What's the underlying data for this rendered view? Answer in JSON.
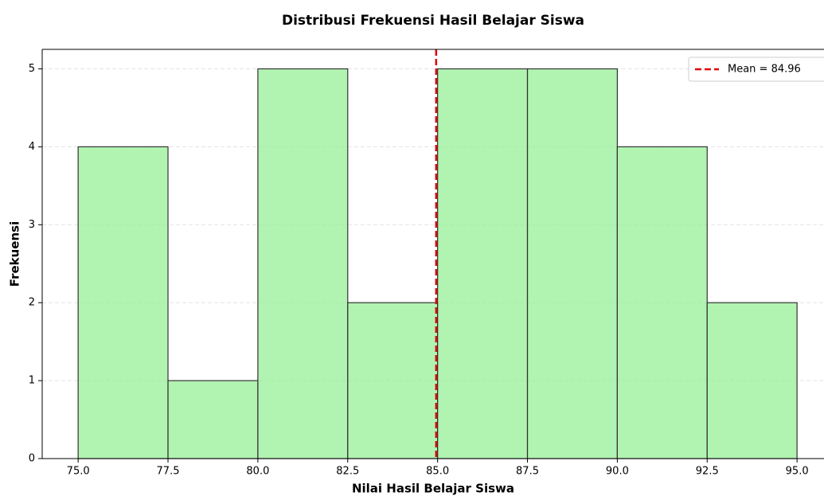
{
  "chart_data": {
    "type": "histogram",
    "title": "Distribusi Frekuensi Hasil Belajar Siswa",
    "x_label": "Nilai Hasil Belajar Siswa",
    "y_label": "Frekuensi",
    "bins": [
      75,
      77.5,
      80,
      82.5,
      85,
      87.5,
      90,
      92.5,
      95
    ],
    "values": [
      4,
      1,
      5,
      2,
      5,
      5,
      4,
      2
    ],
    "color": "#90ee90",
    "edge_color": "#333333",
    "mean": {
      "value": 84.96,
      "label": "Mean = 84.96",
      "color": "#e00000"
    },
    "xlim": [
      74,
      95.75
    ],
    "ylim": [
      0,
      5.25
    ],
    "xticks": [
      {
        "value": 75,
        "label": "75.0"
      },
      {
        "value": 77.5,
        "label": "77.5"
      },
      {
        "value": 80,
        "label": "80.0"
      },
      {
        "value": 82.5,
        "label": "82.5"
      },
      {
        "value": 85,
        "label": "85.0"
      },
      {
        "value": 87.5,
        "label": "87.5"
      },
      {
        "value": 90,
        "label": "90.0"
      },
      {
        "value": 92.5,
        "label": "92.5"
      },
      {
        "value": 95,
        "label": "95.0"
      }
    ],
    "yticks": [
      0,
      1,
      2,
      3,
      4,
      5
    ],
    "grid": true,
    "legend": "upper right"
  }
}
